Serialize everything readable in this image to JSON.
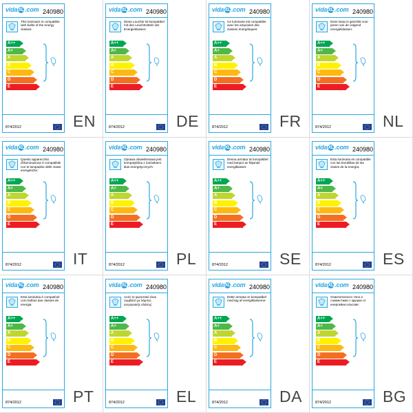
{
  "brand": "vidaXL.com",
  "brand_parts": {
    "pre": "vida",
    "mark": "XL",
    "post": ".com"
  },
  "model": "240980",
  "regulation": "874/2012",
  "scale": [
    "A++",
    "A+",
    "A",
    "B",
    "C",
    "D",
    "E"
  ],
  "scale_colors": [
    "#00a651",
    "#50b848",
    "#bed62f",
    "#fff200",
    "#fdb913",
    "#f37021",
    "#ed1c24"
  ],
  "icons": {
    "bulb": "light-bulb-icon",
    "bracket": "bracket-icon",
    "flag": "eu-flag-icon"
  },
  "labels": [
    {
      "lang": "EN",
      "text": "This luminaire is compatible with bulbs of the energy classes:"
    },
    {
      "lang": "DE",
      "text": "Diese Leuchte ist kompatibel mit den Leuchtmitteln der Energieklassen:"
    },
    {
      "lang": "FR",
      "text": "Ce luminaire est compatible avec les ampoules des classes énergétiques:"
    },
    {
      "lang": "NL",
      "text": "Deze lamp is geschikt voor peren van de volgend energieklassen:"
    },
    {
      "lang": "IT",
      "text": "Questo apparecchio d'illuminazione è compatibile con le lampadine delle classi energetiche:"
    },
    {
      "lang": "PL",
      "text": "Oprawa oświetleniowa jest kompatybilna z żarówkami klas energetycznych:"
    },
    {
      "lang": "SE",
      "text": "Denna armatur är kompatibel med lampor av följande energiklasser:"
    },
    {
      "lang": "ES",
      "text": "Esta luminaria es compatible con las bombillas de las clases de la energía:"
    },
    {
      "lang": "PT",
      "text": "Esta luminária é compatível com bulbos das classes de energia:"
    },
    {
      "lang": "EL",
      "text": "Αυτό το φωτιστικό είναι συμβατό με λάμπες ενεργειακής κλάσης:"
    },
    {
      "lang": "DA",
      "text": "Dette armatur er kompatibel med løg af energiklasserne:"
    },
    {
      "lang": "BG",
      "text": "Осветителното тяло е съвместимо с крушки от енергийни класове:"
    }
  ]
}
